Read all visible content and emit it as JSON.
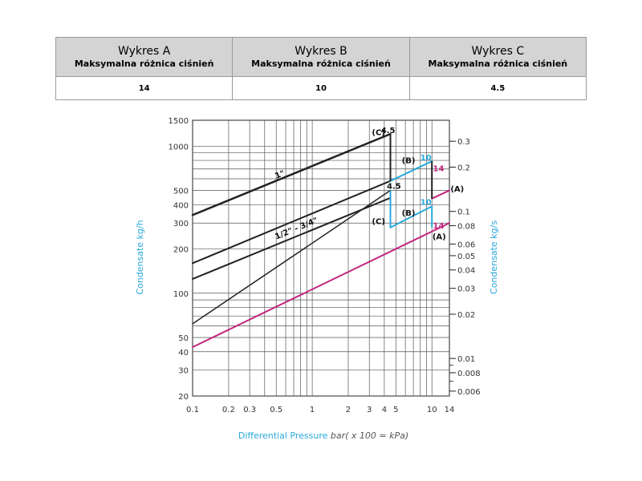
{
  "table": {
    "headers": [
      {
        "title": "Wykres A",
        "subtitle": "Maksymalna różnica ciśnień"
      },
      {
        "title": "Wykres B",
        "subtitle": "Maksymalna różnica ciśnień"
      },
      {
        "title": "Wykres C",
        "subtitle": "Maksymalna różnica ciśnień"
      }
    ],
    "values": [
      "14",
      "10",
      "4.5"
    ]
  },
  "chart_data": {
    "type": "line",
    "xlabel": "Differential Pressure",
    "xlabel_unit": "bar( x 100 = kPa)",
    "ylabel_left": "Condensate kg/h",
    "ylabel_right": "Condensate kg/s",
    "x_scale": "log",
    "y_scale": "log",
    "xlim": [
      0.1,
      14
    ],
    "ylim": [
      20,
      1500
    ],
    "x_ticks": [
      0.1,
      0.2,
      0.3,
      0.5,
      1,
      2,
      3,
      4,
      5,
      10,
      14
    ],
    "x_tick_labels": [
      "0.1",
      "0.2",
      "0.3",
      "0.5",
      "1",
      "2",
      "3",
      "4",
      "5",
      "10",
      "14"
    ],
    "y_ticks_left": [
      20,
      30,
      40,
      50,
      100,
      200,
      300,
      400,
      500,
      1000,
      1500
    ],
    "y_tick_labels_left": [
      "20",
      "30",
      "40",
      "50",
      "100",
      "200",
      "300",
      "400",
      "500",
      "1000",
      "1500"
    ],
    "y_ticks_right": [
      0.006,
      0.008,
      0.01,
      0.02,
      0.03,
      0.04,
      0.05,
      0.06,
      0.08,
      0.1,
      0.2,
      0.3
    ],
    "y_tick_labels_right": [
      "0.006",
      "0.008",
      "0.01",
      "0.02",
      "0.03",
      "0.04",
      "0.05",
      "0.06",
      "0.08",
      "0.1",
      "0.2",
      "0.3"
    ],
    "grid": true,
    "series": [
      {
        "name": "1\"",
        "color": "#222222",
        "width": 2.5,
        "x": [
          0.1,
          4.5
        ],
        "y": [
          340,
          1210
        ]
      },
      {
        "name": "",
        "color": "#222222",
        "width": 2,
        "x": [
          0.1,
          4.5
        ],
        "y": [
          160,
          580
        ]
      },
      {
        "name": "1/2\" - 3/4\"",
        "color": "#222222",
        "width": 2,
        "x": [
          0.1,
          4.5
        ],
        "y": [
          125,
          445
        ]
      },
      {
        "name": "",
        "color": "#222222",
        "width": 1.5,
        "x": [
          0.1,
          4.5
        ],
        "y": [
          62,
          500
        ]
      },
      {
        "name": "",
        "color": "#c2257f",
        "width": 2,
        "x": [
          0.1,
          14
        ],
        "y": [
          43,
          300
        ]
      },
      {
        "name": "",
        "color": "#c2257f",
        "width": 2,
        "x": [
          10,
          14
        ],
        "y": [
          440,
          500
        ]
      },
      {
        "name": "",
        "color": "#29a8dc",
        "width": 2,
        "x": [
          4.5,
          10
        ],
        "y": [
          580,
          790
        ]
      },
      {
        "name": "",
        "color": "#29a8dc",
        "width": 2,
        "x": [
          4.5,
          10
        ],
        "y": [
          280,
          390
        ]
      }
    ],
    "drops": [
      {
        "x": 4.5,
        "from": 1210,
        "to": 580,
        "color": "#222222"
      },
      {
        "x": 10,
        "from": 790,
        "to": 440,
        "color": "#222222"
      },
      {
        "x": 4.5,
        "from": 500,
        "to": 280,
        "color": "#29a8dc"
      },
      {
        "x": 10,
        "from": 390,
        "to": 280,
        "color": "#29a8dc"
      }
    ],
    "annotations": [
      {
        "text": "(C)",
        "x": 3.15,
        "y": 1250,
        "color": "#111111",
        "anchor": "start"
      },
      {
        "text": "4.5",
        "x": 3.75,
        "y": 1290,
        "color": "#111111",
        "anchor": "start"
      },
      {
        "text": "(B)",
        "x": 5.6,
        "y": 805,
        "color": "#111111",
        "anchor": "start"
      },
      {
        "text": "10",
        "x": 8.0,
        "y": 840,
        "color": "#29a8dc",
        "anchor": "start"
      },
      {
        "text": "14",
        "x": 10.2,
        "y": 710,
        "color": "#c2257f",
        "anchor": "start"
      },
      {
        "text": "(A)",
        "x": 14.3,
        "y": 515,
        "color": "#111111",
        "anchor": "start"
      },
      {
        "text": "4.5",
        "x": 4.2,
        "y": 540,
        "color": "#111111",
        "anchor": "start"
      },
      {
        "text": "(C)",
        "x": 3.15,
        "y": 310,
        "color": "#111111",
        "anchor": "start"
      },
      {
        "text": "(B)",
        "x": 5.6,
        "y": 355,
        "color": "#111111",
        "anchor": "start"
      },
      {
        "text": "10",
        "x": 8.0,
        "y": 420,
        "color": "#29a8dc",
        "anchor": "start"
      },
      {
        "text": "14",
        "x": 10.2,
        "y": 290,
        "color": "#c2257f",
        "anchor": "start"
      },
      {
        "text": "(A)",
        "x": 10.1,
        "y": 245,
        "color": "#111111",
        "anchor": "start"
      }
    ],
    "line_labels": [
      {
        "text": "1\"",
        "x": 0.5,
        "y": 600,
        "color": "#111111"
      },
      {
        "text": "1/2\" - 3/4\"",
        "x": 0.5,
        "y": 232,
        "color": "#111111"
      }
    ]
  }
}
